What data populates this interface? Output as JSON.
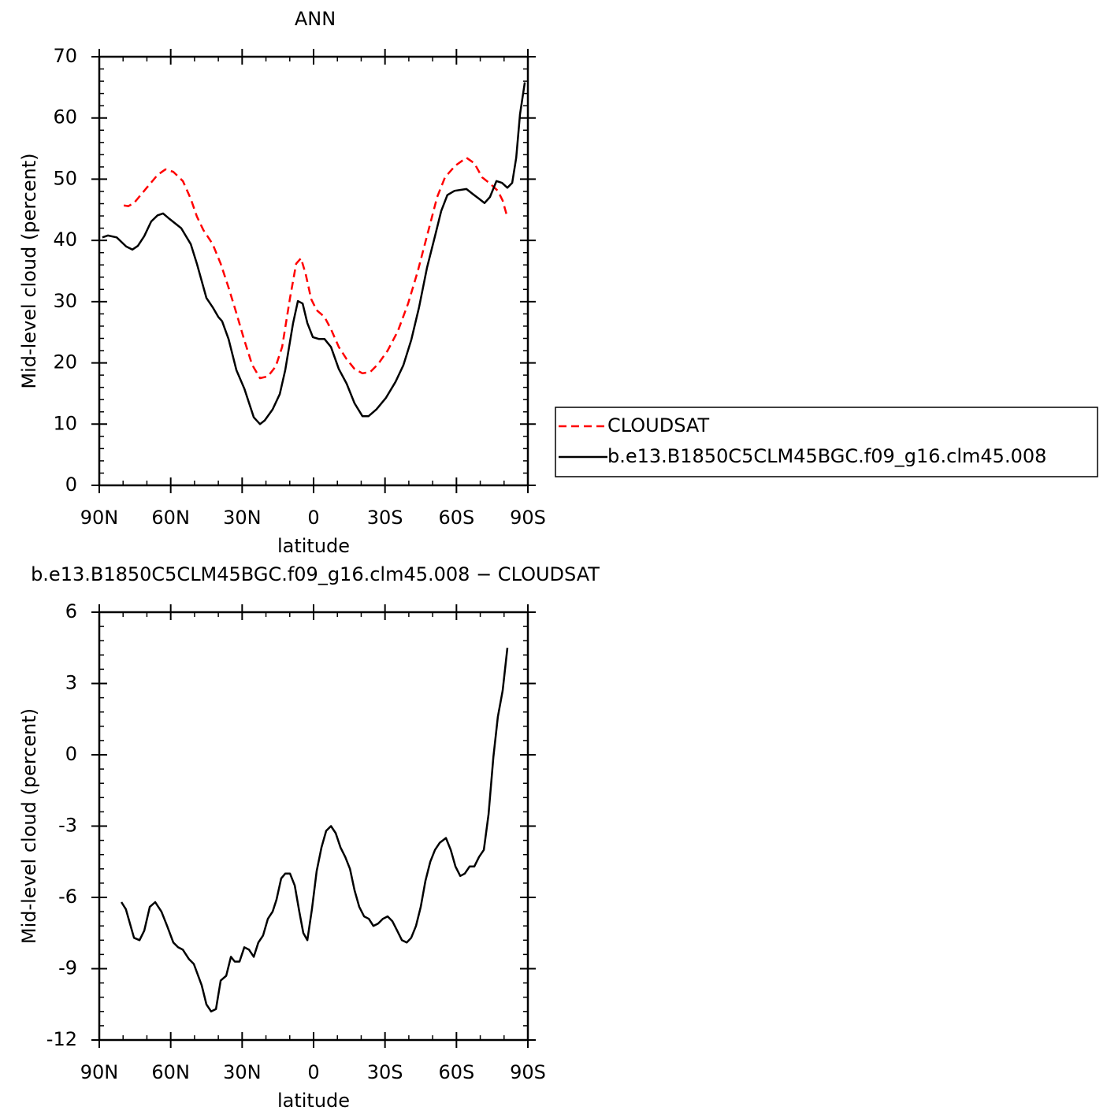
{
  "chart_data": [
    {
      "type": "line",
      "title": "ANN",
      "xlabel": "latitude",
      "ylabel": "Mid-level cloud (percent)",
      "xlim": [
        90,
        -90
      ],
      "ylim": [
        0,
        70
      ],
      "xticks": [
        {
          "value": 90,
          "label": "90N"
        },
        {
          "value": 60,
          "label": "60N"
        },
        {
          "value": 30,
          "label": "30N"
        },
        0,
        {
          "value": -30,
          "label": "30S"
        },
        {
          "value": -60,
          "label": "60S"
        },
        {
          "value": -90,
          "label": "90S"
        }
      ],
      "yticks": [
        0,
        10,
        20,
        30,
        40,
        50,
        60,
        70
      ],
      "legend": "right",
      "series": [
        {
          "name": "CLOUDSAT",
          "color": "#ff0000",
          "line_style": "dashed",
          "x": [
            79.7,
            77.8,
            75.4,
            70.5,
            65.5,
            62.2,
            58.9,
            54.9,
            51.6,
            49.0,
            46.3,
            42.4,
            39.0,
            35.7,
            32.4,
            29.1,
            25.8,
            22.5,
            19.2,
            15.9,
            13.2,
            9.9,
            7.3,
            5.3,
            3.3,
            1.0,
            -1.3,
            -4.6,
            -7.3,
            -10.6,
            -13.9,
            -17.2,
            -20.5,
            -23.8,
            -27.1,
            -31.1,
            -35.4,
            -39.7,
            -43.7,
            -47.6,
            -51.9,
            -55.2,
            -59.5,
            -64.2,
            -67.5,
            -70.8,
            -74.1,
            -77.4,
            -79.4,
            -81.0
          ],
          "values": [
            45.7,
            45.6,
            46.1,
            48.4,
            50.7,
            51.6,
            51.2,
            49.7,
            46.8,
            43.9,
            41.7,
            39.4,
            36.2,
            32.3,
            28.1,
            23.7,
            19.7,
            17.5,
            17.8,
            19.4,
            22.6,
            30.6,
            36.2,
            37.1,
            34.5,
            30.4,
            28.6,
            27.5,
            25.5,
            22.6,
            20.6,
            19.0,
            18.3,
            18.5,
            19.8,
            22.0,
            25.2,
            29.7,
            34.9,
            40.7,
            47.1,
            50.3,
            52.2,
            53.5,
            52.6,
            50.3,
            49.3,
            48.1,
            46.5,
            44.3
          ]
        },
        {
          "name": "b.e13.B1850C5CLM45BGC.f09_g16.clm45.008",
          "color": "#000000",
          "line_style": "solid",
          "x": [
            88.7,
            86.4,
            82.7,
            78.7,
            76.1,
            73.8,
            71.1,
            68.2,
            65.5,
            63.2,
            60.5,
            55.6,
            51.6,
            49.0,
            45.0,
            42.4,
            40.0,
            38.4,
            35.7,
            32.4,
            29.1,
            25.1,
            22.5,
            20.5,
            17.2,
            14.2,
            11.9,
            8.6,
            6.6,
            4.6,
            2.6,
            0.3,
            -2.3,
            -4.6,
            -7.3,
            -10.6,
            -13.9,
            -17.2,
            -20.5,
            -23.1,
            -26.4,
            -30.4,
            -34.4,
            -37.7,
            -41.0,
            -44.3,
            -47.6,
            -51.0,
            -53.6,
            -56.2,
            -59.2,
            -64.2,
            -66.8,
            -69.5,
            -71.8,
            -74.1,
            -76.8,
            -79.1,
            -81.4,
            -83.4,
            -85.1,
            -86.7,
            -88.7
          ],
          "values": [
            40.5,
            40.8,
            40.5,
            39.0,
            38.5,
            39.1,
            40.7,
            43.1,
            44.1,
            44.4,
            43.5,
            42.0,
            39.4,
            36.2,
            30.6,
            29.1,
            27.5,
            26.8,
            23.9,
            18.8,
            15.8,
            11.1,
            10.0,
            10.6,
            12.4,
            14.9,
            18.8,
            26.5,
            30.1,
            29.7,
            26.5,
            24.2,
            23.9,
            23.9,
            22.6,
            19.0,
            16.6,
            13.4,
            11.3,
            11.3,
            12.4,
            14.3,
            16.9,
            19.6,
            23.7,
            29.1,
            35.5,
            40.7,
            44.8,
            47.4,
            48.1,
            48.4,
            47.6,
            46.8,
            46.1,
            47.1,
            49.7,
            49.4,
            48.6,
            49.4,
            53.5,
            60.6,
            65.8
          ]
        }
      ]
    },
    {
      "type": "line",
      "title": "b.e13.B1850C5CLM45BGC.f09_g16.clm45.008 − CLOUDSAT",
      "xlabel": "latitude",
      "ylabel": "Mid-level cloud (percent)",
      "xlim": [
        90,
        -90
      ],
      "ylim": [
        -12,
        6
      ],
      "xticks": [
        {
          "value": 90,
          "label": "90N"
        },
        {
          "value": 60,
          "label": "60N"
        },
        {
          "value": 30,
          "label": "30N"
        },
        0,
        {
          "value": -30,
          "label": "30S"
        },
        {
          "value": -60,
          "label": "60S"
        },
        {
          "value": -90,
          "label": "90S"
        }
      ],
      "yticks": [
        -12,
        -9,
        -6,
        -3,
        0,
        3,
        6
      ],
      "series": [
        {
          "color": "#000000",
          "line_style": "solid",
          "x": [
            80.7,
            78.8,
            75.4,
            73.1,
            71.1,
            68.8,
            66.5,
            63.9,
            61.5,
            58.9,
            56.9,
            54.9,
            52.3,
            50.3,
            47.0,
            45.0,
            43.0,
            41.0,
            39.0,
            36.7,
            34.7,
            33.1,
            31.1,
            29.1,
            27.1,
            25.1,
            23.2,
            21.2,
            19.2,
            17.2,
            15.6,
            13.6,
            11.9,
            9.9,
            7.9,
            6.0,
            4.3,
            2.6,
            0.7,
            -1.3,
            -3.3,
            -5.3,
            -7.3,
            -9.3,
            -11.3,
            -13.3,
            -15.3,
            -17.2,
            -19.2,
            -21.2,
            -23.2,
            -25.1,
            -27.1,
            -29.1,
            -31.1,
            -33.1,
            -35.1,
            -37.1,
            -39.1,
            -41.0,
            -43.0,
            -45.0,
            -47.0,
            -49.0,
            -51.0,
            -53.0,
            -55.6,
            -57.6,
            -59.6,
            -61.6,
            -63.5,
            -65.5,
            -67.5,
            -69.5,
            -71.5,
            -73.5,
            -75.5,
            -77.4,
            -79.4,
            -81.4
          ],
          "values": [
            -6.2,
            -6.5,
            -7.7,
            -7.8,
            -7.4,
            -6.4,
            -6.2,
            -6.6,
            -7.2,
            -7.9,
            -8.1,
            -8.2,
            -8.6,
            -8.8,
            -9.7,
            -10.5,
            -10.8,
            -10.7,
            -9.5,
            -9.3,
            -8.5,
            -8.7,
            -8.7,
            -8.1,
            -8.2,
            -8.5,
            -7.9,
            -7.6,
            -6.9,
            -6.6,
            -6.1,
            -5.2,
            -5.0,
            -5.0,
            -5.5,
            -6.6,
            -7.5,
            -7.8,
            -6.5,
            -4.9,
            -3.9,
            -3.2,
            -3.0,
            -3.3,
            -3.9,
            -4.3,
            -4.8,
            -5.7,
            -6.4,
            -6.8,
            -6.9,
            -7.2,
            -7.1,
            -6.9,
            -6.8,
            -7.0,
            -7.4,
            -7.8,
            -7.9,
            -7.7,
            -7.2,
            -6.4,
            -5.3,
            -4.5,
            -4.0,
            -3.7,
            -3.5,
            -4.0,
            -4.7,
            -5.1,
            -5.0,
            -4.7,
            -4.7,
            -4.3,
            -4.0,
            -2.5,
            -0.1,
            1.6,
            2.7,
            4.5
          ]
        }
      ]
    }
  ]
}
